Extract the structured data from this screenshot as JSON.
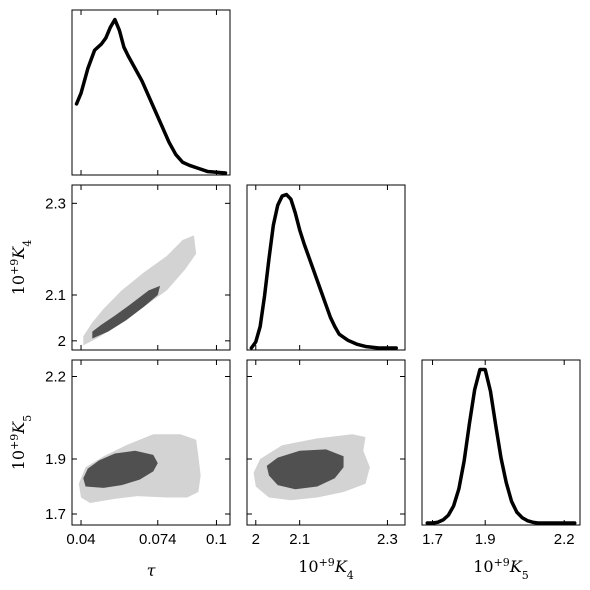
{
  "chart_data": {
    "type": "corner",
    "colors": {
      "inner_contour": "#505050",
      "outer_contour": "#d3d3d3",
      "line": "#000000"
    },
    "parameters": [
      {
        "name": "tau",
        "label": "τ",
        "range": [
          0.036,
          0.106
        ],
        "ticks": [
          0.04,
          0.074,
          0.1
        ],
        "tick_labels": [
          "0.04",
          "0.074",
          "0.1"
        ]
      },
      {
        "name": "K4",
        "label": "10+9K4",
        "label_base": "10",
        "label_sup": "+9",
        "label_var": "K",
        "label_sub": "4",
        "range": [
          1.98,
          2.34
        ],
        "ticks": [
          2.0,
          2.1,
          2.3
        ],
        "tick_labels": [
          "2",
          "2.1",
          "2.3"
        ]
      },
      {
        "name": "K5",
        "label": "10+9K5",
        "label_base": "10",
        "label_sup": "+9",
        "label_var": "K",
        "label_sub": "5",
        "range": [
          1.66,
          2.26
        ],
        "ticks": [
          1.7,
          1.9,
          2.2
        ],
        "tick_labels": [
          "1.7",
          "1.9",
          "2.2"
        ]
      }
    ],
    "marginals": [
      {
        "param": "tau",
        "x": [
          0.038,
          0.04,
          0.043,
          0.046,
          0.049,
          0.051,
          0.053,
          0.055,
          0.057,
          0.059,
          0.061,
          0.064,
          0.067,
          0.07,
          0.073,
          0.076,
          0.079,
          0.082,
          0.085,
          0.088,
          0.092,
          0.096,
          0.1,
          0.104
        ],
        "y": [
          0.45,
          0.52,
          0.68,
          0.8,
          0.84,
          0.88,
          0.95,
          1.0,
          0.93,
          0.82,
          0.76,
          0.68,
          0.6,
          0.5,
          0.4,
          0.3,
          0.2,
          0.12,
          0.07,
          0.05,
          0.03,
          0.01,
          0.005,
          0.0
        ]
      },
      {
        "param": "K4",
        "x": [
          1.99,
          2.0,
          2.01,
          2.02,
          2.03,
          2.04,
          2.05,
          2.06,
          2.07,
          2.08,
          2.09,
          2.1,
          2.11,
          2.12,
          2.13,
          2.14,
          2.15,
          2.16,
          2.17,
          2.18,
          2.19,
          2.21,
          2.23,
          2.25,
          2.28,
          2.32
        ],
        "y": [
          0.0,
          0.04,
          0.14,
          0.34,
          0.58,
          0.8,
          0.93,
          0.99,
          1.0,
          0.97,
          0.88,
          0.77,
          0.68,
          0.6,
          0.52,
          0.44,
          0.36,
          0.28,
          0.2,
          0.14,
          0.09,
          0.05,
          0.025,
          0.01,
          0.0,
          0.0
        ]
      },
      {
        "param": "K5",
        "x": [
          1.68,
          1.7,
          1.72,
          1.74,
          1.76,
          1.78,
          1.8,
          1.82,
          1.84,
          1.86,
          1.88,
          1.9,
          1.92,
          1.94,
          1.96,
          1.98,
          2.0,
          2.02,
          2.04,
          2.06,
          2.08,
          2.1,
          2.12,
          2.15,
          2.2,
          2.24
        ],
        "y": [
          0.0,
          0.0,
          0.005,
          0.02,
          0.05,
          0.11,
          0.22,
          0.4,
          0.64,
          0.86,
          0.99,
          0.99,
          0.85,
          0.63,
          0.42,
          0.26,
          0.14,
          0.07,
          0.035,
          0.015,
          0.005,
          0.0,
          0.0,
          0.0,
          0.0,
          0.0
        ]
      }
    ],
    "contours": [
      {
        "x_param": "tau",
        "y_param": "K4",
        "outer": [
          [
            0.041,
            1.99
          ],
          [
            0.048,
            2.008
          ],
          [
            0.058,
            2.04
          ],
          [
            0.068,
            2.075
          ],
          [
            0.078,
            2.11
          ],
          [
            0.086,
            2.155
          ],
          [
            0.091,
            2.19
          ],
          [
            0.09,
            2.23
          ],
          [
            0.085,
            2.22
          ],
          [
            0.078,
            2.185
          ],
          [
            0.068,
            2.15
          ],
          [
            0.058,
            2.11
          ],
          [
            0.05,
            2.07
          ],
          [
            0.045,
            2.04
          ],
          [
            0.041,
            2.01
          ]
        ],
        "inner": [
          [
            0.045,
            2.005
          ],
          [
            0.052,
            2.02
          ],
          [
            0.06,
            2.045
          ],
          [
            0.068,
            2.075
          ],
          [
            0.074,
            2.1
          ],
          [
            0.075,
            2.12
          ],
          [
            0.07,
            2.11
          ],
          [
            0.062,
            2.08
          ],
          [
            0.055,
            2.055
          ],
          [
            0.049,
            2.035
          ],
          [
            0.045,
            2.02
          ]
        ]
      },
      {
        "x_param": "tau",
        "y_param": "K5",
        "outer": [
          [
            0.04,
            1.76
          ],
          [
            0.044,
            1.74
          ],
          [
            0.055,
            1.755
          ],
          [
            0.065,
            1.765
          ],
          [
            0.078,
            1.76
          ],
          [
            0.087,
            1.76
          ],
          [
            0.092,
            1.78
          ],
          [
            0.093,
            1.84
          ],
          [
            0.092,
            1.91
          ],
          [
            0.091,
            1.97
          ],
          [
            0.084,
            1.99
          ],
          [
            0.072,
            1.99
          ],
          [
            0.06,
            1.95
          ],
          [
            0.05,
            1.91
          ],
          [
            0.042,
            1.87
          ],
          [
            0.039,
            1.81
          ]
        ],
        "inner": [
          [
            0.042,
            1.8
          ],
          [
            0.05,
            1.795
          ],
          [
            0.058,
            1.805
          ],
          [
            0.066,
            1.825
          ],
          [
            0.072,
            1.855
          ],
          [
            0.074,
            1.885
          ],
          [
            0.072,
            1.915
          ],
          [
            0.064,
            1.93
          ],
          [
            0.055,
            1.92
          ],
          [
            0.048,
            1.895
          ],
          [
            0.043,
            1.865
          ],
          [
            0.041,
            1.83
          ]
        ]
      },
      {
        "x_param": "K4",
        "y_param": "K5",
        "outer": [
          [
            2.0,
            1.8
          ],
          [
            2.03,
            1.76
          ],
          [
            2.08,
            1.75
          ],
          [
            2.14,
            1.76
          ],
          [
            2.2,
            1.78
          ],
          [
            2.25,
            1.81
          ],
          [
            2.26,
            1.87
          ],
          [
            2.245,
            1.93
          ],
          [
            2.25,
            1.98
          ],
          [
            2.22,
            1.99
          ],
          [
            2.14,
            1.975
          ],
          [
            2.06,
            1.95
          ],
          [
            2.01,
            1.9
          ],
          [
            1.995,
            1.85
          ]
        ],
        "inner": [
          [
            2.03,
            1.84
          ],
          [
            2.05,
            1.805
          ],
          [
            2.09,
            1.79
          ],
          [
            2.14,
            1.8
          ],
          [
            2.18,
            1.83
          ],
          [
            2.2,
            1.87
          ],
          [
            2.2,
            1.91
          ],
          [
            2.16,
            1.935
          ],
          [
            2.1,
            1.93
          ],
          [
            2.05,
            1.905
          ],
          [
            2.025,
            1.875
          ]
        ]
      }
    ]
  }
}
